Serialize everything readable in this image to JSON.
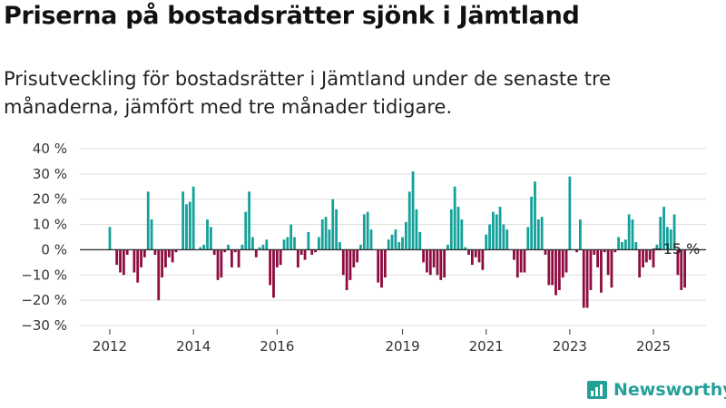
{
  "title": "Priserna på bostadsrätter sjönk i Jämtland",
  "subtitle": "Prisutveckling för bostadsrätter i Jämtland under de senaste tre månaderna, jämfört med tre månader tidigare.",
  "brand": {
    "name": "Newsworthy",
    "logo_icon": "newsworthy-logo-icon"
  },
  "colors": {
    "positive": "#14a199",
    "negative": "#8e0c3f",
    "grid": "#dddddd",
    "zero_line": "#333333"
  },
  "chart_data": {
    "type": "bar",
    "title": "",
    "xlabel": "",
    "ylabel": "",
    "ylim": [
      -30,
      40
    ],
    "y_ticks": [
      40,
      30,
      20,
      10,
      0,
      -10,
      -20,
      -30
    ],
    "y_tick_labels": [
      "40 %",
      "30 %",
      "20 %",
      "10 %",
      "0 %",
      "−10 %",
      "−20 %",
      "−30 %"
    ],
    "x_ticks": [
      {
        "label": "2012",
        "index": 0
      },
      {
        "label": "2014",
        "index": 24
      },
      {
        "label": "2016",
        "index": 48
      },
      {
        "label": "2019",
        "index": 84
      },
      {
        "label": "2021",
        "index": 108
      },
      {
        "label": "2023",
        "index": 132
      },
      {
        "label": "2025",
        "index": 156
      }
    ],
    "grid": true,
    "annotation": {
      "text": "−15 %",
      "index": 161
    },
    "values": [
      9,
      0,
      -6,
      -9,
      -10,
      -2,
      0,
      -9,
      -13,
      -7,
      -3,
      23,
      12,
      -2,
      -20,
      -11,
      -7,
      -3,
      -5,
      -1,
      0,
      23,
      18,
      19,
      25,
      0,
      1,
      2,
      12,
      9,
      -2,
      -12,
      -11,
      -1,
      2,
      -7,
      -1,
      -7,
      2,
      15,
      23,
      5,
      -3,
      1,
      2,
      4,
      -14,
      -19,
      -7,
      -6,
      4,
      5,
      10,
      5,
      -7,
      -2,
      -4,
      7,
      -2,
      -1,
      5,
      12,
      13,
      8,
      20,
      16,
      3,
      -10,
      -16,
      -12,
      -7,
      -5,
      2,
      14,
      15,
      8,
      0,
      -13,
      -15,
      -11,
      4,
      6,
      8,
      3,
      5,
      11,
      23,
      31,
      16,
      7,
      -5,
      -9,
      -10,
      -7,
      -10,
      -12,
      -11,
      2,
      16,
      25,
      17,
      12,
      1,
      -2,
      -6,
      -3,
      -5,
      -8,
      6,
      10,
      15,
      14,
      17,
      10,
      8,
      0,
      -4,
      -11,
      -9,
      -9,
      9,
      21,
      27,
      12,
      13,
      -2,
      -14,
      -14,
      -18,
      -16,
      -11,
      -9,
      29,
      0,
      -1,
      12,
      -23,
      -23,
      -16,
      -2,
      -7,
      -17,
      -1,
      -10,
      -15,
      -1,
      5,
      3,
      4,
      14,
      12,
      3,
      -11,
      -7,
      -5,
      -4,
      -7,
      2,
      13,
      17,
      9,
      8,
      14,
      -10,
      -16,
      -15
    ],
    "units": "%"
  }
}
